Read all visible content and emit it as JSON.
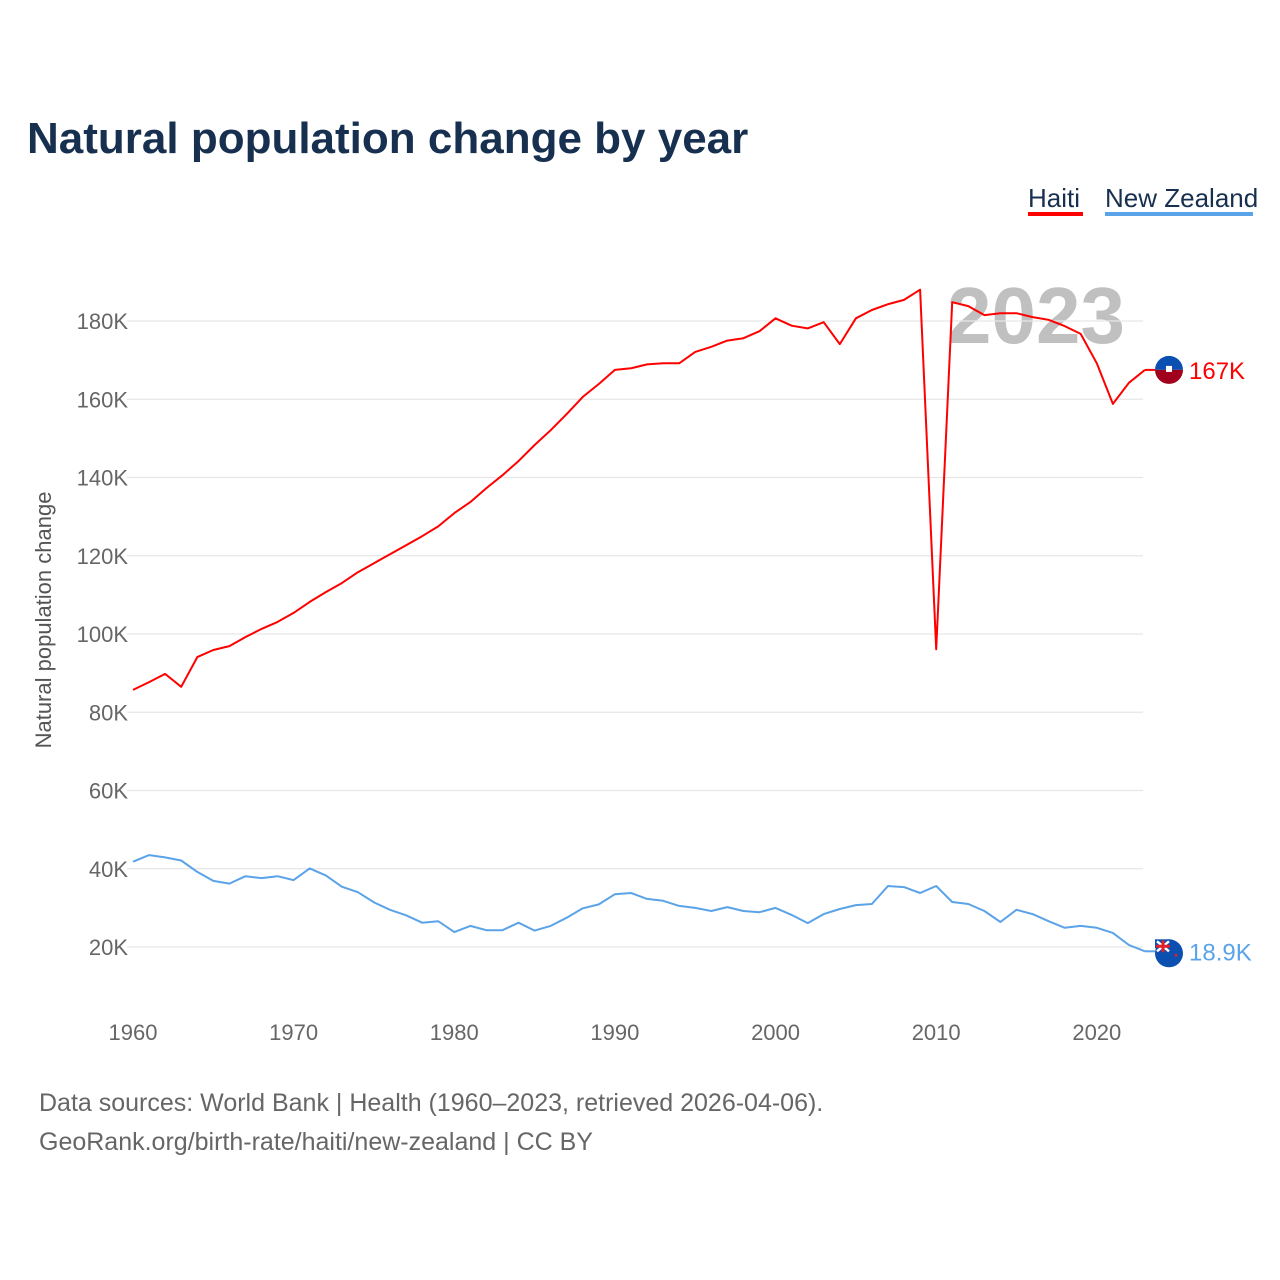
{
  "chart_data": {
    "type": "line",
    "title": "Natural population change by year",
    "ylabel": "Natural population change",
    "xlabel": "",
    "xlim": [
      1960,
      2023
    ],
    "ylim": [
      10000,
      190000
    ],
    "x_ticks": [
      1960,
      1970,
      1980,
      1990,
      2000,
      2010,
      2020
    ],
    "x_tick_labels": [
      "1960",
      "1970",
      "1980",
      "1990",
      "2000",
      "2010",
      "2020"
    ],
    "y_ticks": [
      20000,
      40000,
      60000,
      80000,
      100000,
      120000,
      140000,
      160000,
      180000
    ],
    "y_tick_labels": [
      "20K",
      "40K",
      "60K",
      "80K",
      "100K",
      "120K",
      "140K",
      "160K",
      "180K"
    ],
    "grid": true,
    "legend_position": "top-right",
    "year_watermark": "2023",
    "x": [
      1960,
      1961,
      1962,
      1963,
      1964,
      1965,
      1966,
      1967,
      1968,
      1969,
      1970,
      1971,
      1972,
      1973,
      1974,
      1975,
      1976,
      1977,
      1978,
      1979,
      1980,
      1981,
      1982,
      1983,
      1984,
      1985,
      1986,
      1987,
      1988,
      1989,
      1990,
      1991,
      1992,
      1993,
      1994,
      1995,
      1996,
      1997,
      1998,
      1999,
      2000,
      2001,
      2002,
      2003,
      2004,
      2005,
      2006,
      2007,
      2008,
      2009,
      2010,
      2011,
      2012,
      2013,
      2014,
      2015,
      2016,
      2017,
      2018,
      2019,
      2020,
      2021,
      2022,
      2023
    ],
    "series": [
      {
        "name": "Haiti",
        "color": "#ff0000",
        "end_label": "167K",
        "values": [
          85700,
          87700,
          89800,
          86500,
          94100,
          95900,
          96900,
          99200,
          101300,
          103100,
          105400,
          108200,
          110700,
          113000,
          115800,
          118100,
          120400,
          122700,
          125000,
          127500,
          130900,
          133700,
          137300,
          140600,
          144200,
          148300,
          152100,
          156200,
          160600,
          163900,
          167500,
          167900,
          168900,
          169200,
          169200,
          172100,
          173400,
          175000,
          175600,
          177400,
          180700,
          178800,
          178100,
          179700,
          174100,
          180700,
          182800,
          184300,
          185400,
          188000,
          96100,
          184800,
          183800,
          181500,
          182000,
          182000,
          181000,
          180300,
          178700,
          176700,
          169200,
          158800,
          164200,
          167500
        ]
      },
      {
        "name": "New Zealand",
        "color": "#5ba3e8",
        "end_label": "18.9K",
        "values": [
          41800,
          43500,
          42900,
          42100,
          39200,
          36900,
          36200,
          38100,
          37600,
          38100,
          37100,
          40100,
          38300,
          35400,
          34000,
          31400,
          29500,
          28100,
          26200,
          26600,
          23800,
          25400,
          24300,
          24300,
          26200,
          24200,
          25400,
          27500,
          29900,
          30900,
          33500,
          33800,
          32300,
          31800,
          30500,
          30000,
          29200,
          30200,
          29200,
          28900,
          30000,
          28200,
          26100,
          28400,
          29700,
          30700,
          31000,
          35600,
          35300,
          33800,
          35600,
          31500,
          31000,
          29200,
          26400,
          29500,
          28400,
          26600,
          24900,
          25400,
          24900,
          23600,
          20500,
          18900
        ]
      }
    ]
  },
  "footer": {
    "line1": "Data sources: World Bank | Health (1960–2023, retrieved 2026-04-06).",
    "line2": "GeoRank.org/birth-rate/haiti/new-zealand | CC BY"
  }
}
